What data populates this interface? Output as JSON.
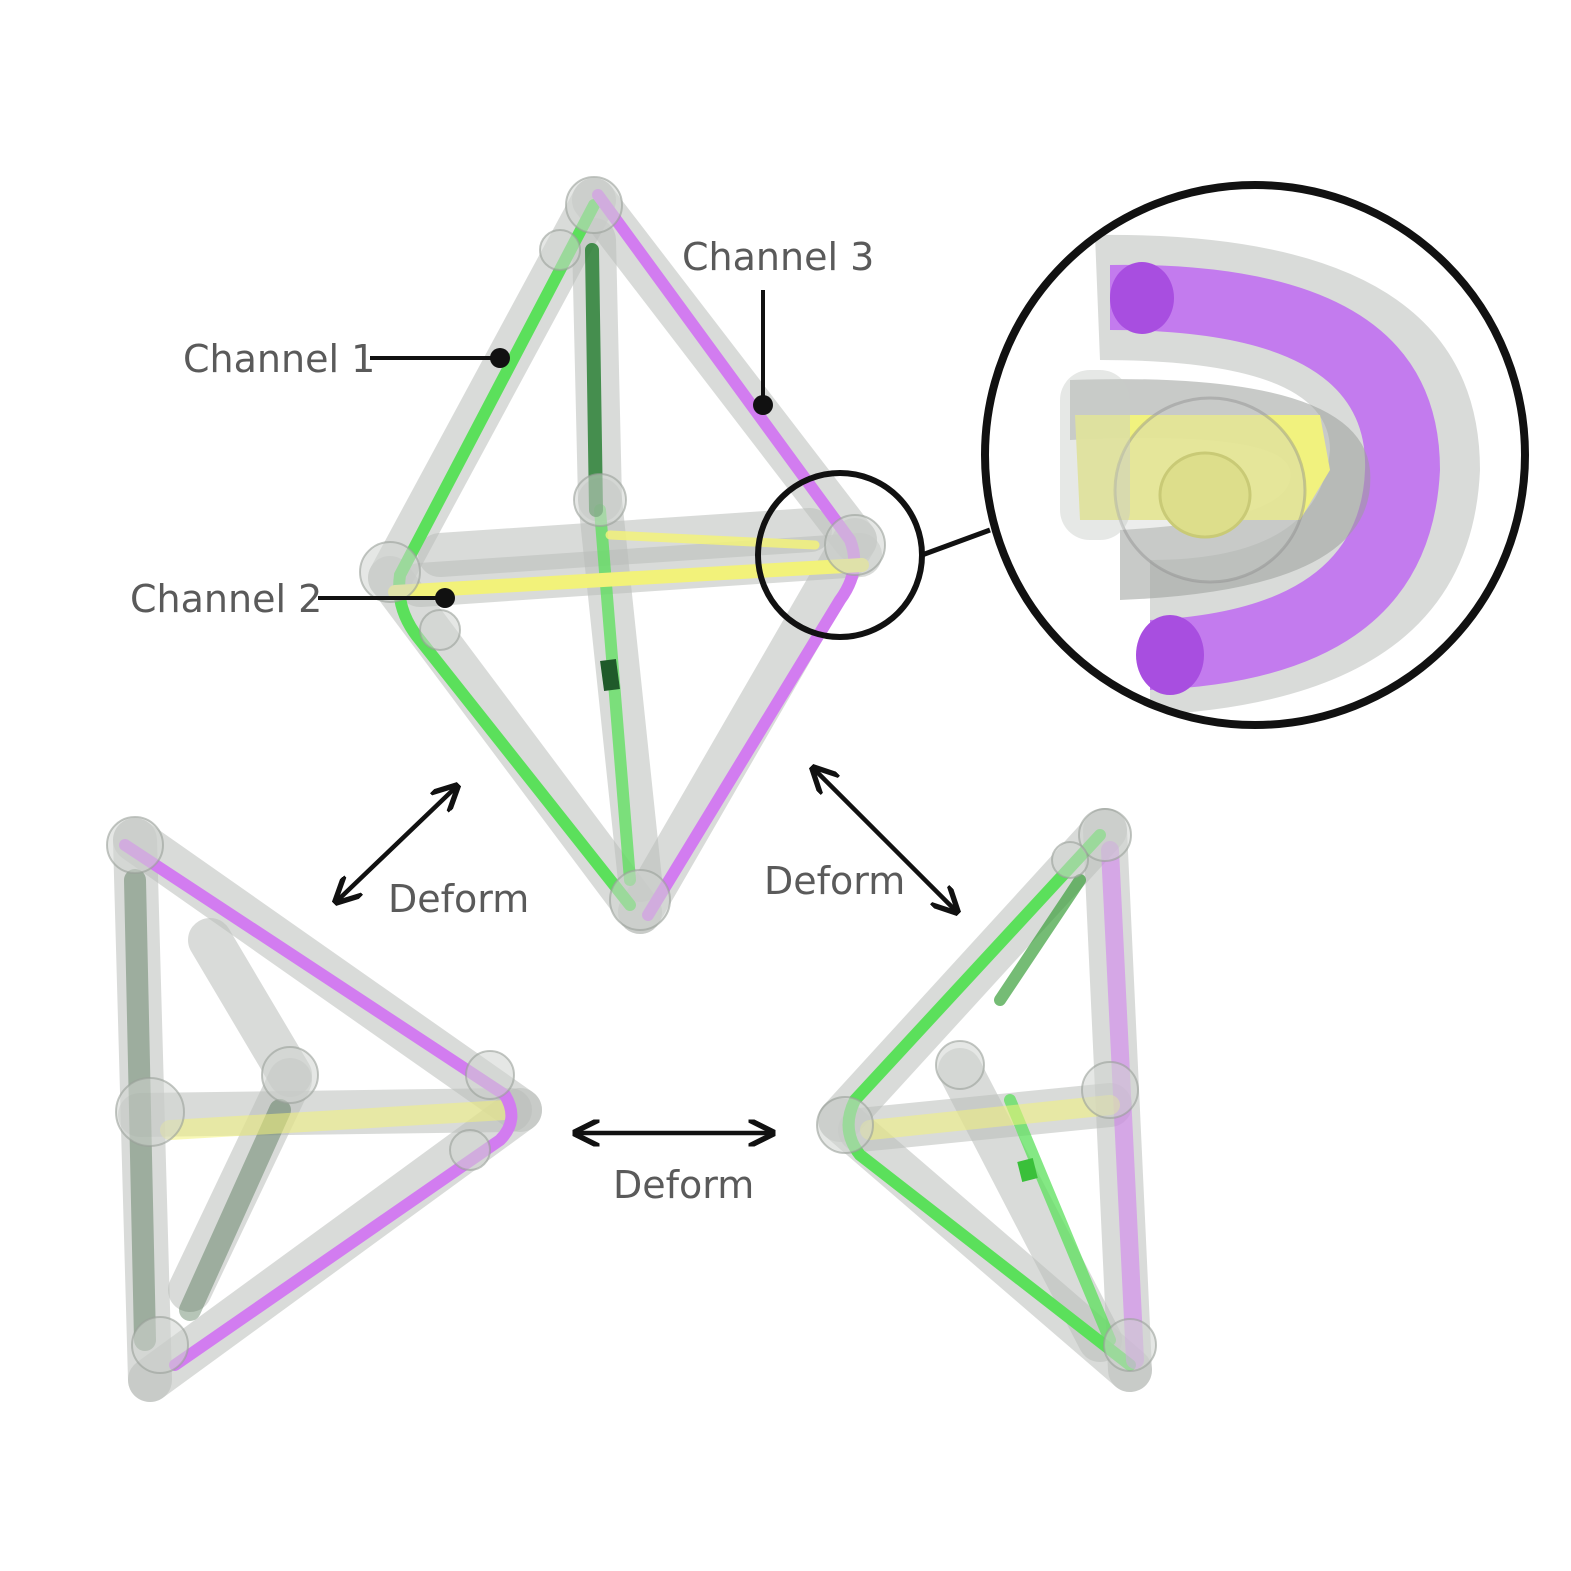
{
  "labels": {
    "channel1": "Channel 1",
    "channel2": "Channel 2",
    "channel3": "Channel 3",
    "deform_left": "Deform",
    "deform_right": "Deform",
    "deform_bottom": "Deform"
  },
  "colors": {
    "channel1": "#5be05b",
    "channel1_dark": "#1f7a2a",
    "channel2": "#f2f27a",
    "channel3": "#d27cf0",
    "channel3_dark": "#a45ae0",
    "shell": "#b9bdb9",
    "outline": "#111111",
    "text": "#5a5a5a"
  }
}
